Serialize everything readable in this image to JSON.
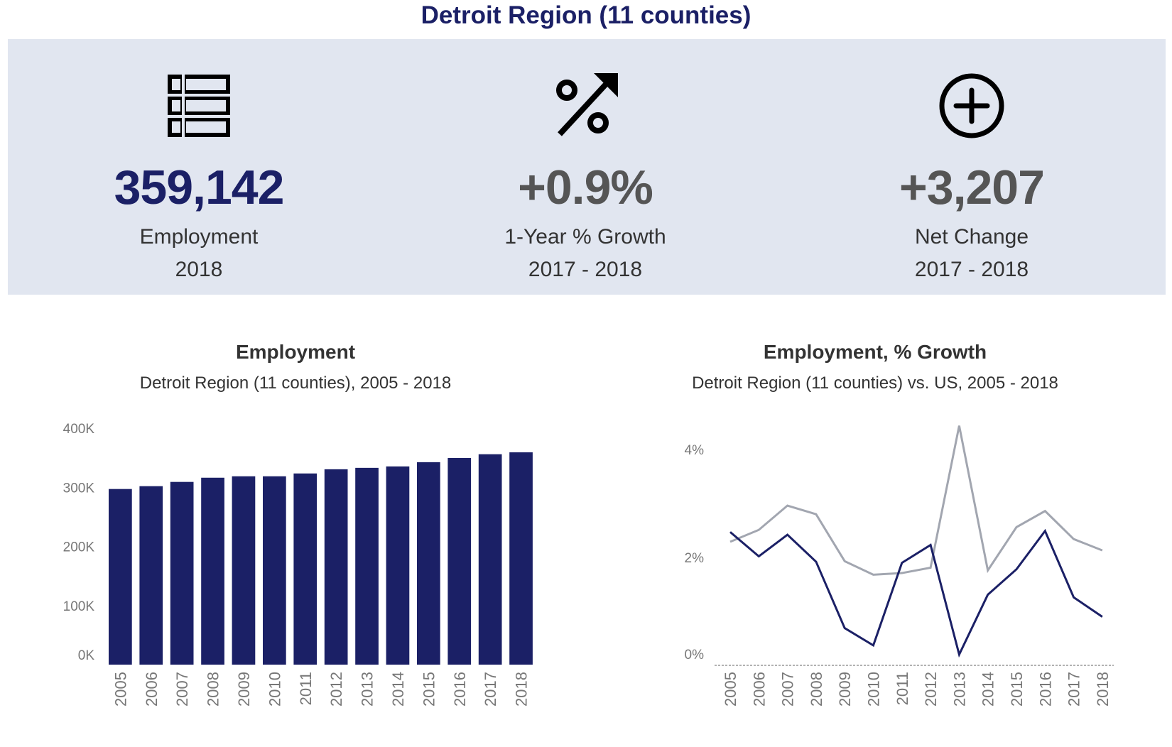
{
  "header": {
    "title": "Detroit Region (11 counties)"
  },
  "kpis": [
    {
      "icon": "list-table-icon",
      "value": "359,142",
      "label": "Employment",
      "period": "2018",
      "color": "#1b2066"
    },
    {
      "icon": "percent-up-arrow-icon",
      "value": "+0.9%",
      "label": "1-Year % Growth",
      "period": "2017 - 2018",
      "color": "#555555"
    },
    {
      "icon": "plus-circle-icon",
      "value": "+3,207",
      "label": "Net Change",
      "period": "2017 - 2018",
      "color": "#555555"
    }
  ],
  "colors": {
    "navy": "#1b2066",
    "gray": "#a2a6b0",
    "panel": "#e1e6f0"
  },
  "chart_data": [
    {
      "type": "bar",
      "title": "Employment",
      "subtitle": "Detroit Region (11 counties), 2005 - 2018",
      "xlabel": "",
      "ylabel": "",
      "categories": [
        "2005",
        "2006",
        "2007",
        "2008",
        "2009",
        "2010",
        "2011",
        "2012",
        "2013",
        "2014",
        "2015",
        "2016",
        "2017",
        "2018"
      ],
      "values": [
        297100,
        301900,
        309100,
        316200,
        318600,
        318600,
        323400,
        330500,
        332900,
        335300,
        342500,
        349600,
        355935,
        359142
      ],
      "ylim": [
        0,
        400000
      ],
      "yticks": [
        0,
        100000,
        200000,
        300000,
        400000
      ],
      "ytick_labels": [
        "0K",
        "100K",
        "200K",
        "300K",
        "400K"
      ],
      "color": "#1b2066",
      "grid": false
    },
    {
      "type": "line",
      "title": "Employment, % Growth",
      "subtitle": "Detroit Region (11 counties) vs. US, 2005 - 2018",
      "xlabel": "",
      "ylabel": "",
      "categories": [
        "2005",
        "2006",
        "2007",
        "2008",
        "2009",
        "2010",
        "2011",
        "2012",
        "2013",
        "2014",
        "2015",
        "2016",
        "2017",
        "2018"
      ],
      "series": [
        {
          "color": "#a2a6b0",
          "values": [
            2.29,
            2.51,
            2.96,
            2.8,
            1.93,
            1.68,
            1.71,
            1.81,
            4.44,
            1.76,
            2.56,
            2.86,
            2.34,
            2.13
          ]
        },
        {
          "color": "#1b2066",
          "values": [
            2.47,
            2.02,
            2.42,
            1.92,
            0.69,
            0.37,
            1.9,
            2.23,
            0.2,
            1.31,
            1.78,
            2.49,
            1.26,
            0.9
          ]
        }
      ],
      "ylim": [
        0,
        4.6
      ],
      "yticks": [
        0,
        2,
        4
      ],
      "ytick_labels": [
        "0%",
        "2%",
        "4%"
      ],
      "zero_line": "dashed",
      "grid": false
    }
  ]
}
